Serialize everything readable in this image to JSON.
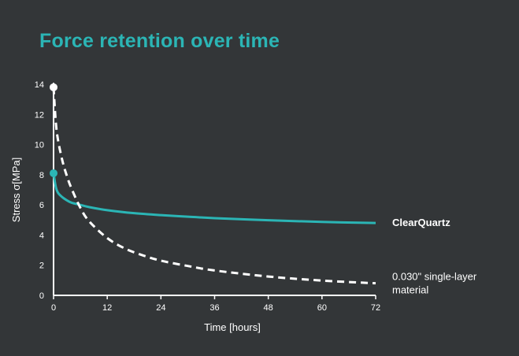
{
  "chart_data": {
    "type": "line",
    "title": "Force retention over time",
    "xlabel": "Time [hours]",
    "ylabel": "Stress  σ[MPa]",
    "xlim": [
      0,
      72
    ],
    "ylim": [
      0,
      14
    ],
    "xticks": [
      0,
      12,
      24,
      36,
      48,
      60,
      72
    ],
    "yticks": [
      0,
      2,
      4,
      6,
      8,
      10,
      12,
      14
    ],
    "grid": false,
    "series": [
      {
        "name": "ClearQuartz",
        "label_lines": [
          "ClearQuartz"
        ],
        "style": "solid",
        "color": "#2bb5b5",
        "start_marker": true,
        "x": [
          0,
          0.5,
          1,
          2,
          3,
          4,
          6,
          8,
          12,
          18,
          24,
          30,
          36,
          48,
          60,
          72
        ],
        "y": [
          8.1,
          7.2,
          6.8,
          6.5,
          6.3,
          6.15,
          6.0,
          5.85,
          5.65,
          5.45,
          5.32,
          5.22,
          5.12,
          4.98,
          4.87,
          4.8
        ]
      },
      {
        "name": "0.030\" single-layer material",
        "label_lines": [
          "0.030\" single-layer",
          "material"
        ],
        "style": "dashed",
        "color": "#ffffff",
        "start_marker": true,
        "x": [
          0,
          0.5,
          1,
          2,
          3,
          4,
          6,
          8,
          12,
          16,
          20,
          24,
          30,
          36,
          48,
          60,
          72
        ],
        "y": [
          13.8,
          11.5,
          10.3,
          8.9,
          7.9,
          7.1,
          5.8,
          4.9,
          3.8,
          3.1,
          2.65,
          2.3,
          1.95,
          1.65,
          1.25,
          0.98,
          0.8
        ]
      }
    ]
  }
}
